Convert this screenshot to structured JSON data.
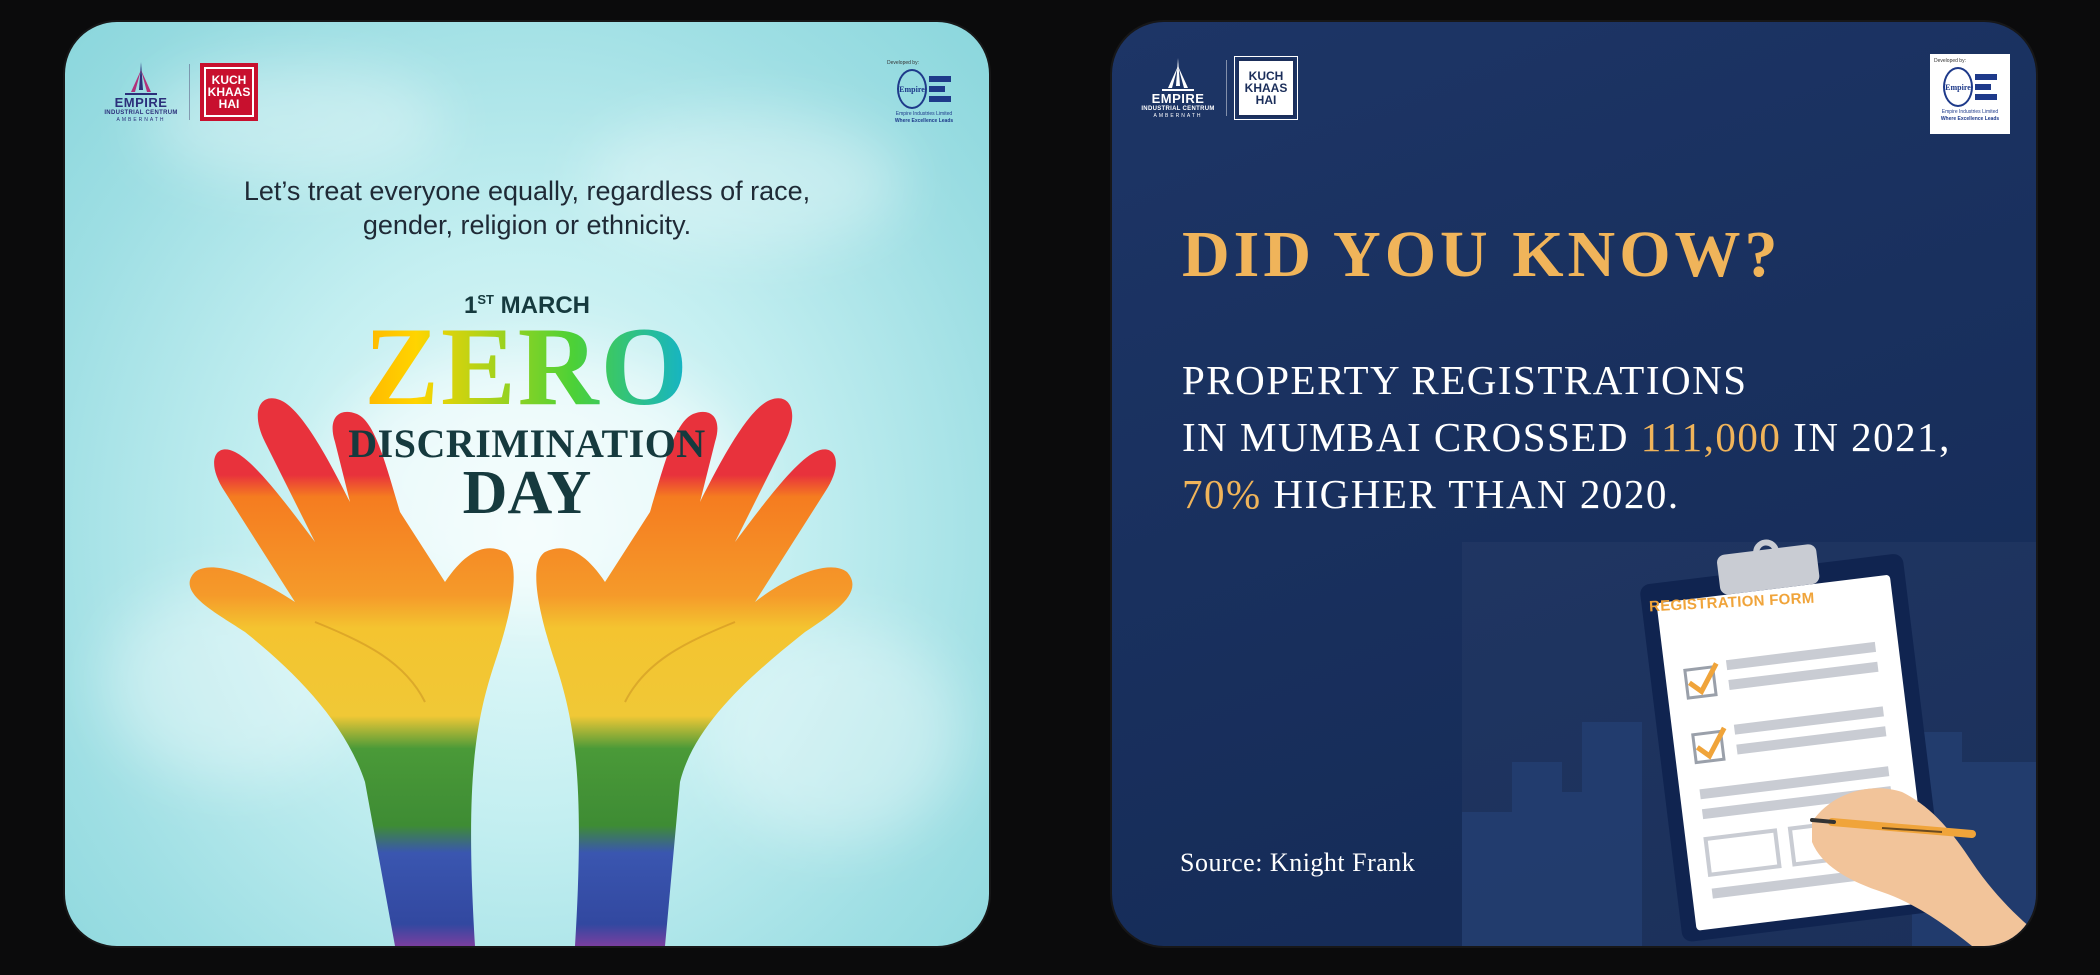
{
  "left_card": {
    "brand": {
      "empire_name": "EMPIRE",
      "empire_sub": "INDUSTRIAL CENTRUM",
      "empire_location": "AMBERNATH",
      "kuch_line1": "KUCH",
      "kuch_line2": "KHAAS",
      "kuch_line3": "HAI"
    },
    "developer": {
      "label": "Developed by:",
      "mark": "Empire",
      "name": "Empire Industries Limited",
      "tagline": "Where Excellence Leads"
    },
    "tagline_line1": "Let’s treat everyone equally, regardless of race,",
    "tagline_line2": "gender, religion or ethnicity.",
    "date_day": "1",
    "date_suffix": "ST",
    "date_month": "MARCH",
    "title_zero": "ZERO",
    "title_discrimination": "DISCRIMINATION",
    "title_day": "DAY",
    "colors": {
      "background": "#a8e3e7",
      "title_dark": "#163a3e",
      "rainbow": [
        "#e8323c",
        "#f57c20",
        "#f4c430",
        "#3e9a3c",
        "#3a56b0"
      ]
    },
    "illustration": "rainbow-painted-hands"
  },
  "right_card": {
    "brand": {
      "empire_name": "EMPIRE",
      "empire_sub": "INDUSTRIAL CENTRUM",
      "empire_location": "AMBERNATH",
      "kuch_line1": "KUCH",
      "kuch_line2": "KHAAS",
      "kuch_line3": "HAI"
    },
    "developer": {
      "label": "Developed by:",
      "mark": "Empire",
      "name": "Empire Industries Limited",
      "tagline": "Where Excellence Leads"
    },
    "headline": "DID YOU KNOW?",
    "fact_line1": "PROPERTY REGISTRATIONS",
    "fact_line2_pre": "IN MUMBAI CROSSED ",
    "fact_line2_highlight": "111,000",
    "fact_line2_post": " IN 2021,",
    "fact_line3_highlight": "70%",
    "fact_line3_post": " HIGHER THAN 2020.",
    "source": "Source: Knight Frank",
    "form_title": "REGISTRATION FORM",
    "colors": {
      "background": "#1a3160",
      "accent": "#f0b45a",
      "text": "#ffffff"
    },
    "illustration": "clipboard-registration-form-with-hand-and-pen"
  }
}
